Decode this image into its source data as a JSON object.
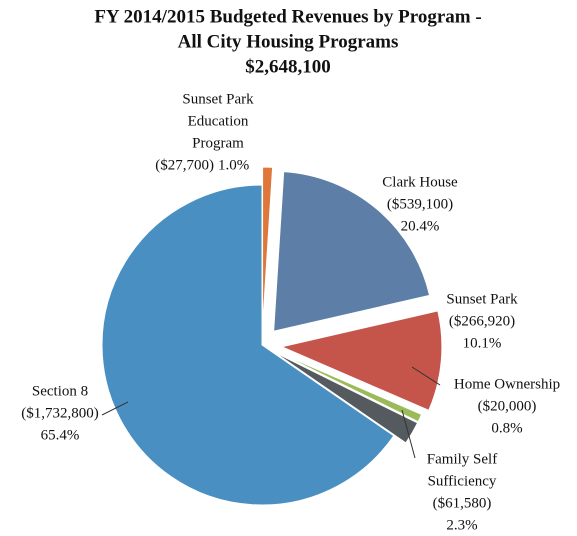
{
  "chart_data": {
    "type": "pie",
    "title": [
      "FY 2014/2015 Budgeted Revenues  by Program -",
      "All City Housing Programs",
      "$2,648,100"
    ],
    "categories": [
      [
        "Sunset Park",
        "Education",
        "Program"
      ],
      [
        "Clark House"
      ],
      [
        "Sunset Park"
      ],
      [
        "Home Ownership"
      ],
      [
        "Family Self",
        "Sufficiency"
      ],
      [
        "Section 8"
      ]
    ],
    "amounts": [
      "($27,700)",
      "($539,100)",
      "($266,920)",
      "($20,000)",
      "($61,580)",
      "($1,732,800)"
    ],
    "values": [
      1.0,
      20.4,
      10.1,
      0.8,
      2.3,
      65.4
    ],
    "value_labels": [
      "1.0%",
      "20.4%",
      "10.1%",
      "0.8%",
      "2.3%",
      "65.4%"
    ],
    "colors": [
      "#e0773a",
      "#5d7ea6",
      "#c5554b",
      "#9bbb59",
      "#555a5e",
      "#4a8fc2"
    ]
  }
}
